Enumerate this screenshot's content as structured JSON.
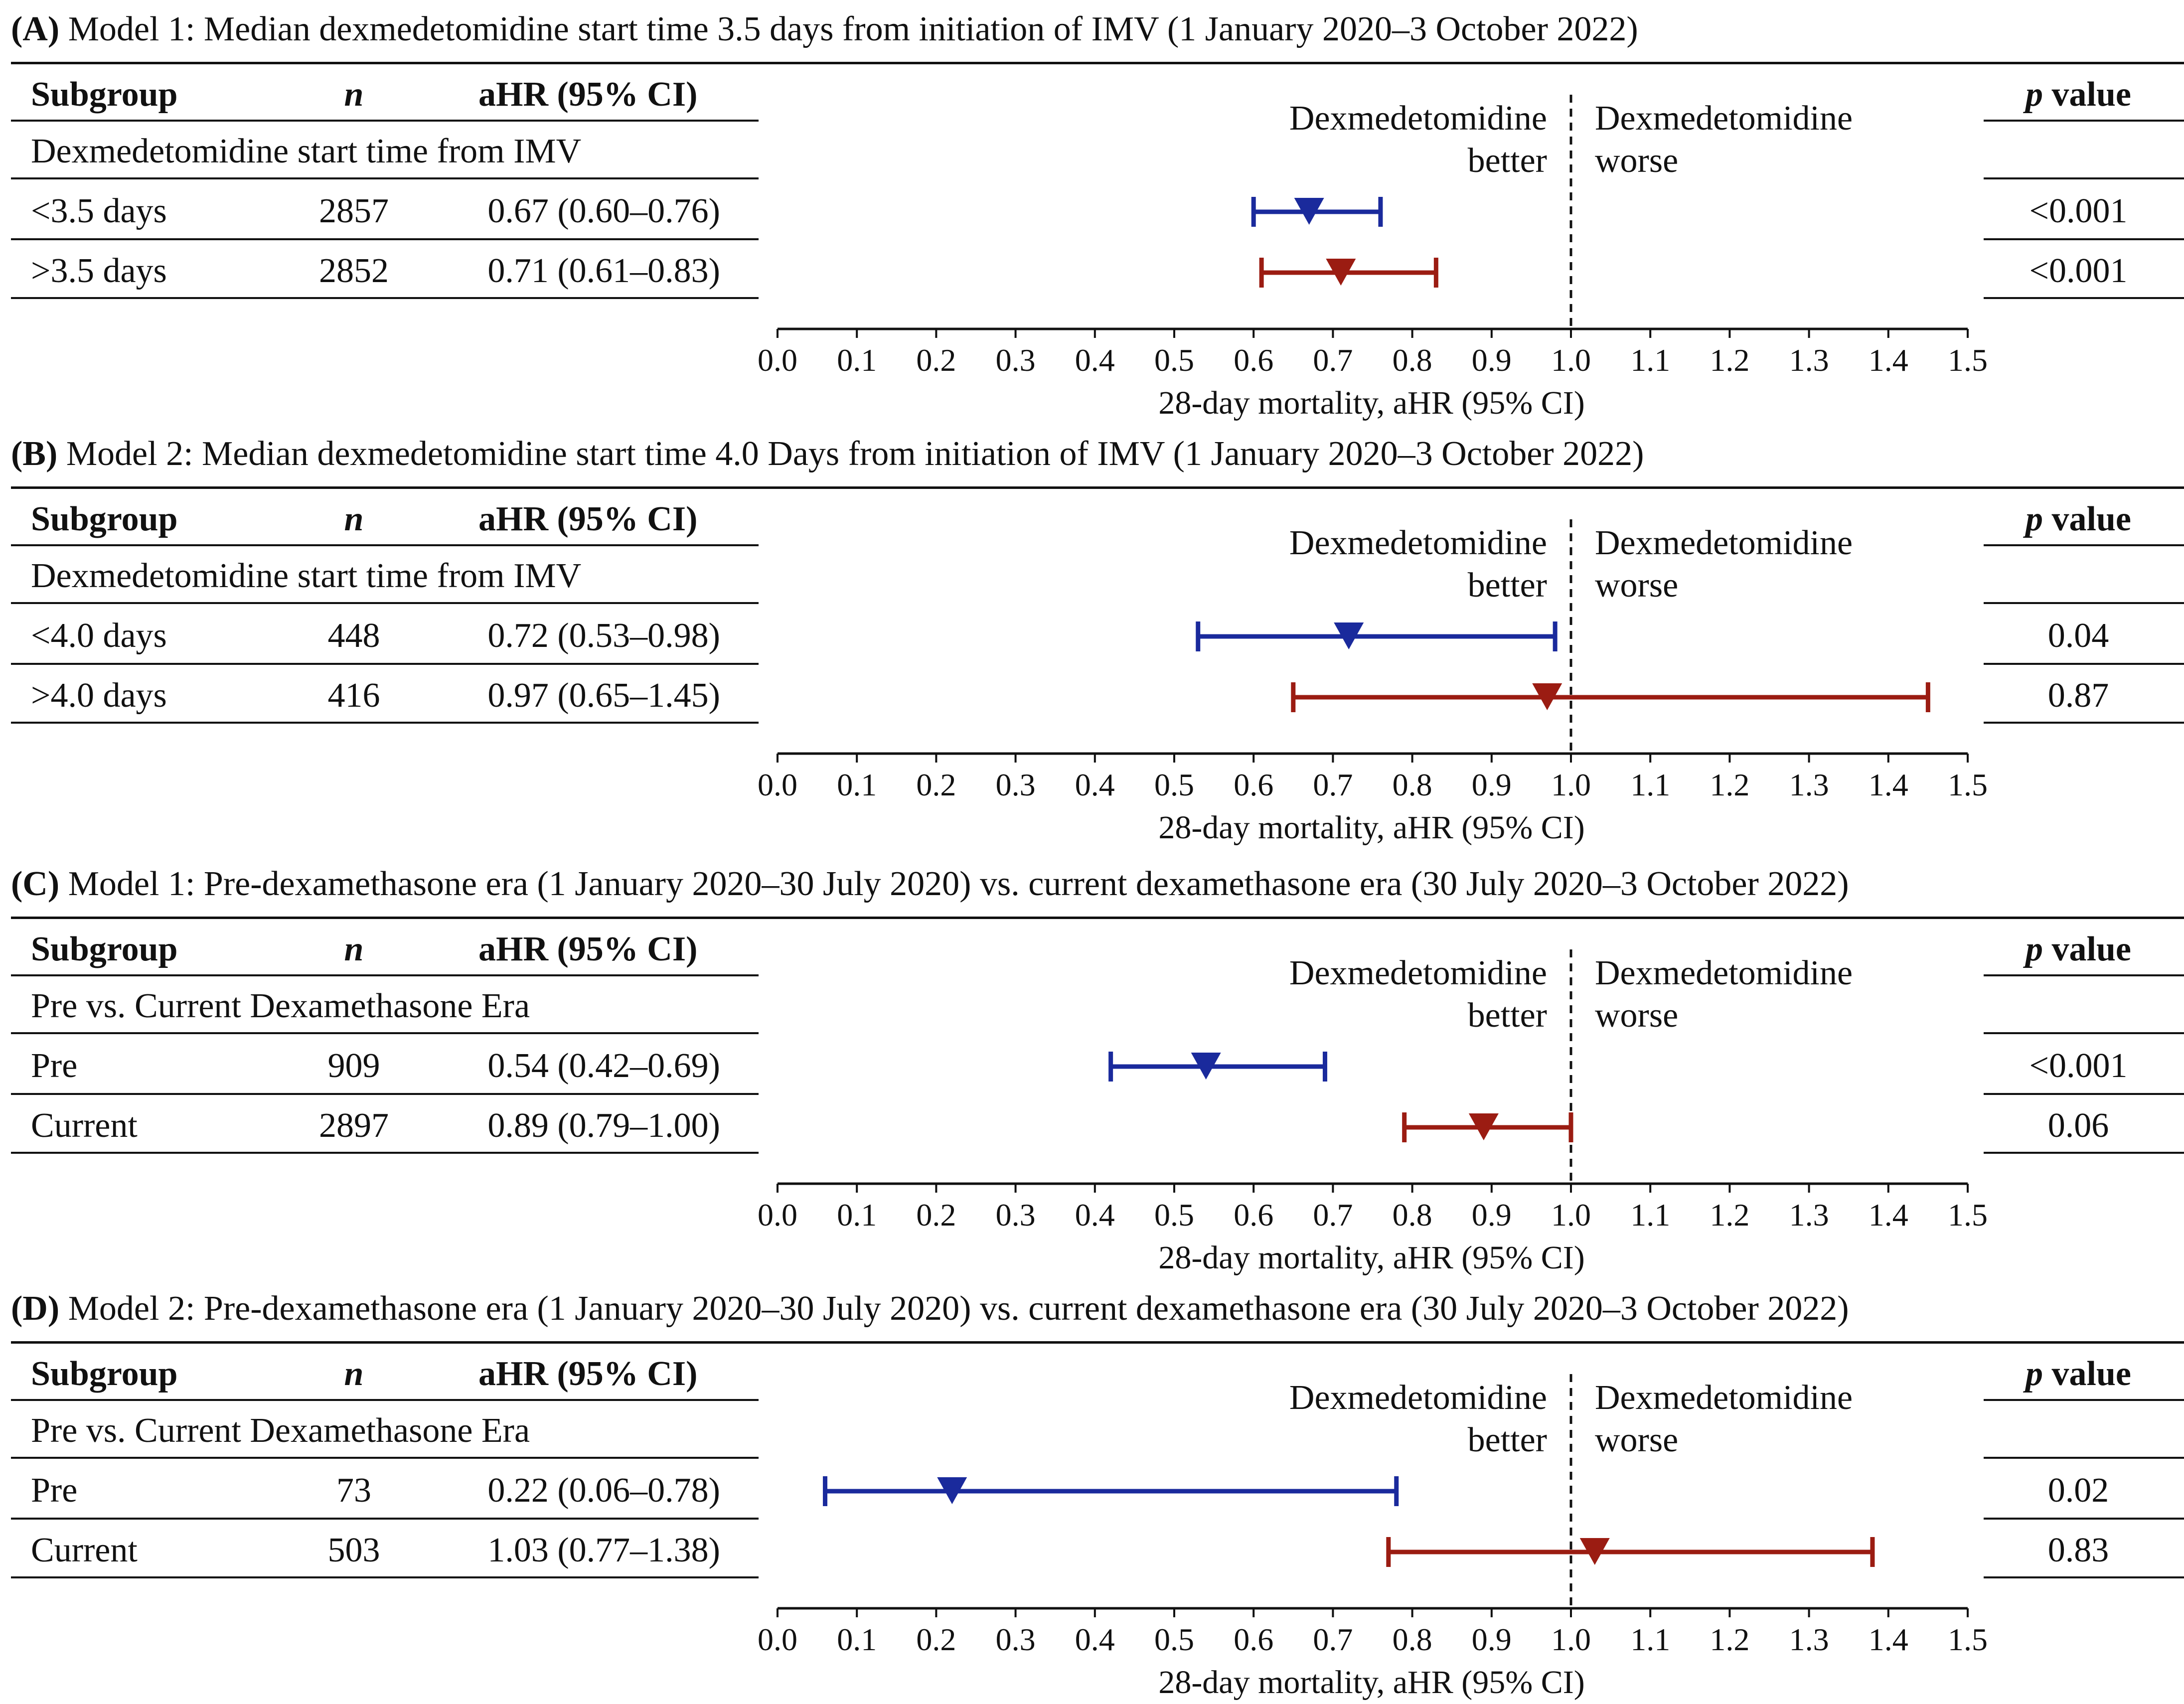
{
  "chart_data": [
    {
      "type": "forest",
      "panel_label": "(A)",
      "title": "Model 1: Median dexmedetomidine start time 3.5 days from initiation of IMV (1 January 2020–3 October 2022)",
      "headers": {
        "subgroup": "Subgroup",
        "n": "n",
        "ahr": "aHR (95% CI)",
        "p": "p value"
      },
      "group_label": "Dexmedetomidine start time from IMV",
      "rows": [
        {
          "label": "<3.5 days",
          "n": "2857",
          "ahr_text": "0.67 (0.60–0.76)",
          "est": 0.67,
          "lo": 0.6,
          "hi": 0.76,
          "p": "<0.001",
          "color": "#1a2a9c"
        },
        {
          "label": ">3.5 days",
          "n": "2852",
          "ahr_text": "0.71 (0.61–0.83)",
          "est": 0.71,
          "lo": 0.61,
          "hi": 0.83,
          "p": "<0.001",
          "color": "#9b1c12"
        }
      ],
      "better_label": [
        "Dexmedetomidine",
        "better"
      ],
      "worse_label": [
        "Dexmedetomidine",
        "worse"
      ],
      "xlabel": "28-day mortality, aHR (95% CI)",
      "xlim": [
        0.0,
        1.5
      ],
      "xticks": [
        "0.0",
        "0.1",
        "0.2",
        "0.3",
        "0.4",
        "0.5",
        "0.6",
        "0.7",
        "0.8",
        "0.9",
        "1.0",
        "1.1",
        "1.2",
        "1.3",
        "1.4",
        "1.5"
      ],
      "ref_line": 1.0
    },
    {
      "type": "forest",
      "panel_label": "(B)",
      "title": "Model 2: Median dexmedetomidine start time 4.0 Days from initiation of IMV (1 January 2020–3 October 2022)",
      "headers": {
        "subgroup": "Subgroup",
        "n": "n",
        "ahr": "aHR (95% CI)",
        "p": "p value"
      },
      "group_label": "Dexmedetomidine start time from IMV",
      "rows": [
        {
          "label": "<4.0 days",
          "n": "448",
          "ahr_text": "0.72 (0.53–0.98)",
          "est": 0.72,
          "lo": 0.53,
          "hi": 0.98,
          "p": "0.04",
          "color": "#1a2a9c"
        },
        {
          "label": ">4.0 days",
          "n": "416",
          "ahr_text": "0.97 (0.65–1.45)",
          "est": 0.97,
          "lo": 0.65,
          "hi": 1.45,
          "p": "0.87",
          "color": "#9b1c12"
        }
      ],
      "better_label": [
        "Dexmedetomidine",
        "better"
      ],
      "worse_label": [
        "Dexmedetomidine",
        "worse"
      ],
      "xlabel": "28-day mortality, aHR (95% CI)",
      "xlim": [
        0.0,
        1.5
      ],
      "xticks": [
        "0.0",
        "0.1",
        "0.2",
        "0.3",
        "0.4",
        "0.5",
        "0.6",
        "0.7",
        "0.8",
        "0.9",
        "1.0",
        "1.1",
        "1.2",
        "1.3",
        "1.4",
        "1.5"
      ],
      "ref_line": 1.0
    },
    {
      "type": "forest",
      "panel_label": "(C)",
      "title": "Model 1: Pre-dexamethasone era (1 January 2020–30 July 2020) vs. current dexamethasone era (30 July 2020–3 October 2022)",
      "headers": {
        "subgroup": "Subgroup",
        "n": "n",
        "ahr": "aHR (95% CI)",
        "p": "p value"
      },
      "group_label": "Pre vs. Current Dexamethasone Era",
      "rows": [
        {
          "label": "Pre",
          "n": "909",
          "ahr_text": "0.54 (0.42–0.69)",
          "est": 0.54,
          "lo": 0.42,
          "hi": 0.69,
          "p": "<0.001",
          "color": "#1a2a9c"
        },
        {
          "label": "Current",
          "n": "2897",
          "ahr_text": "0.89 (0.79–1.00)",
          "est": 0.89,
          "lo": 0.79,
          "hi": 1.0,
          "p": "0.06",
          "color": "#9b1c12"
        }
      ],
      "better_label": [
        "Dexmedetomidine",
        "better"
      ],
      "worse_label": [
        "Dexmedetomidine",
        "worse"
      ],
      "xlabel": "28-day mortality, aHR (95% CI)",
      "xlim": [
        0.0,
        1.5
      ],
      "xticks": [
        "0.0",
        "0.1",
        "0.2",
        "0.3",
        "0.4",
        "0.5",
        "0.6",
        "0.7",
        "0.8",
        "0.9",
        "1.0",
        "1.1",
        "1.2",
        "1.3",
        "1.4",
        "1.5"
      ],
      "ref_line": 1.0
    },
    {
      "type": "forest",
      "panel_label": "(D)",
      "title": "Model 2: Pre-dexamethasone era (1 January 2020–30 July 2020) vs. current dexamethasone era (30 July 2020–3 October 2022)",
      "headers": {
        "subgroup": "Subgroup",
        "n": "n",
        "ahr": "aHR (95% CI)",
        "p": "p value"
      },
      "group_label": "Pre vs. Current Dexamethasone Era",
      "rows": [
        {
          "label": "Pre",
          "n": "73",
          "ahr_text": "0.22 (0.06–0.78)",
          "est": 0.22,
          "lo": 0.06,
          "hi": 0.78,
          "p": "0.02",
          "color": "#1a2a9c"
        },
        {
          "label": "Current",
          "n": "503",
          "ahr_text": "1.03 (0.77–1.38)",
          "est": 1.03,
          "lo": 0.77,
          "hi": 1.38,
          "p": "0.83",
          "color": "#9b1c12"
        }
      ],
      "better_label": [
        "Dexmedetomidine",
        "better"
      ],
      "worse_label": [
        "Dexmedetomidine",
        "worse"
      ],
      "xlabel": "28-day mortality, aHR (95% CI)",
      "xlim": [
        0.0,
        1.5
      ],
      "xticks": [
        "0.0",
        "0.1",
        "0.2",
        "0.3",
        "0.4",
        "0.5",
        "0.6",
        "0.7",
        "0.8",
        "0.9",
        "1.0",
        "1.1",
        "1.2",
        "1.3",
        "1.4",
        "1.5"
      ],
      "ref_line": 1.0
    }
  ]
}
